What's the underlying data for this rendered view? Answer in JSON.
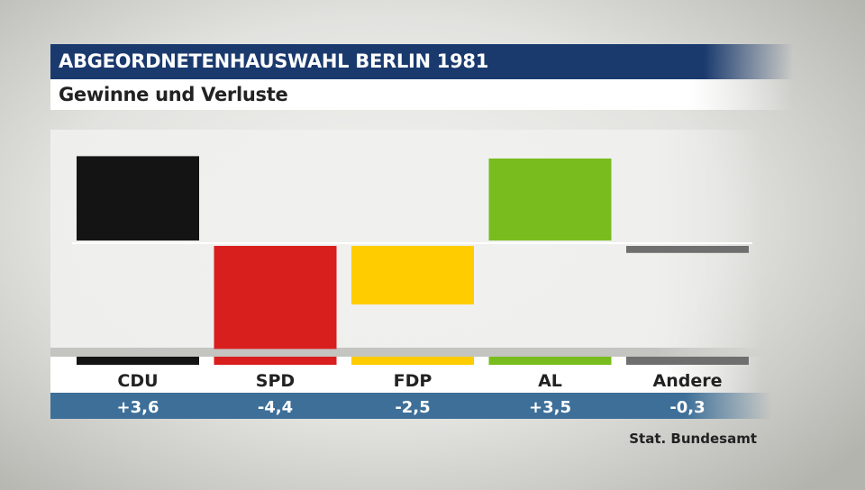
{
  "header": {
    "title": "ABGEORDNETENHAUSWAHL BERLIN 1981",
    "subtitle": "Gewinne und Verluste"
  },
  "source": "Stat. Bundesamt",
  "chart_data": {
    "type": "bar",
    "categories": [
      "CDU",
      "SPD",
      "FDP",
      "AL",
      "Andere"
    ],
    "values": [
      3.6,
      -4.4,
      -2.5,
      3.5,
      -0.3
    ],
    "value_labels": [
      "+3,6",
      "-4,4",
      "-2,5",
      "+3,5",
      "-0,3"
    ],
    "colors": [
      "#141414",
      "#d91e1e",
      "#ffcc00",
      "#78bc1e",
      "#6f6f6f"
    ],
    "title": "ABGEORDNETENHAUSWAHL BERLIN 1981",
    "subtitle": "Gewinne und Verluste",
    "xlabel": "",
    "ylabel": "",
    "ylim": [
      -4.5,
      4.5
    ],
    "grid": false,
    "legend": "none"
  }
}
